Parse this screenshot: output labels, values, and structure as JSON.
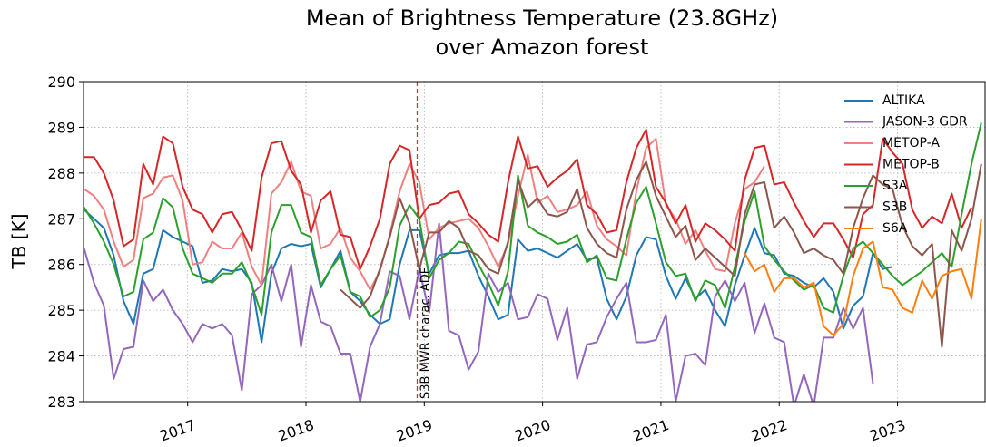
{
  "chart_data": {
    "type": "line",
    "title": "Mean of Brightness Temperature (23.8GHz)",
    "subtitle": "over Amazon forest",
    "ylabel": "TB [K]",
    "xlim": [
      2016.12,
      2023.74
    ],
    "xticks": [
      2017,
      2018,
      2019,
      2020,
      2021,
      2022,
      2023
    ],
    "ylim": [
      283,
      290
    ],
    "yticks": [
      283,
      284,
      285,
      286,
      287,
      288,
      289,
      290
    ],
    "grid": true,
    "legend": "upper right",
    "annotation": {
      "text": "S3B MWR charac. ADF",
      "x": 2018.94,
      "color": "#8c564b"
    },
    "x": [
      2016.125,
      2016.208,
      2016.292,
      2016.375,
      2016.458,
      2016.542,
      2016.625,
      2016.708,
      2016.792,
      2016.875,
      2016.958,
      2017.042,
      2017.125,
      2017.208,
      2017.292,
      2017.375,
      2017.458,
      2017.542,
      2017.625,
      2017.708,
      2017.792,
      2017.875,
      2017.958,
      2018.042,
      2018.125,
      2018.208,
      2018.292,
      2018.375,
      2018.458,
      2018.542,
      2018.625,
      2018.708,
      2018.792,
      2018.875,
      2018.958,
      2019.042,
      2019.125,
      2019.208,
      2019.292,
      2019.375,
      2019.458,
      2019.542,
      2019.625,
      2019.708,
      2019.792,
      2019.875,
      2019.958,
      2020.042,
      2020.125,
      2020.208,
      2020.292,
      2020.375,
      2020.458,
      2020.542,
      2020.625,
      2020.708,
      2020.792,
      2020.875,
      2020.958,
      2021.042,
      2021.125,
      2021.208,
      2021.292,
      2021.375,
      2021.458,
      2021.542,
      2021.625,
      2021.708,
      2021.792,
      2021.875,
      2021.958,
      2022.042,
      2022.125,
      2022.208,
      2022.292,
      2022.375,
      2022.458,
      2022.542,
      2022.625,
      2022.708,
      2022.792,
      2022.875,
      2022.958,
      2023.042,
      2023.125,
      2023.208,
      2023.292,
      2023.375,
      2023.458,
      2023.542,
      2023.625,
      2023.708
    ],
    "series": [
      {
        "name": "ALTIKA",
        "color": "#1f77b4",
        "values": [
          287.2,
          287.0,
          286.8,
          286.2,
          285.2,
          284.7,
          285.8,
          285.9,
          286.75,
          286.6,
          286.5,
          286.4,
          285.6,
          285.65,
          285.9,
          285.85,
          285.9,
          285.6,
          284.3,
          285.8,
          286.35,
          286.45,
          286.4,
          286.45,
          285.5,
          285.9,
          286.3,
          285.4,
          285.2,
          284.9,
          284.7,
          284.8,
          286.0,
          286.75,
          286.75,
          285.8,
          286.2,
          286.25,
          286.25,
          286.3,
          285.75,
          285.3,
          284.8,
          284.9,
          286.55,
          286.3,
          286.35,
          286.25,
          286.15,
          286.3,
          286.45,
          286.1,
          286.15,
          285.25,
          284.8,
          285.3,
          286.2,
          286.6,
          286.55,
          285.75,
          285.25,
          285.7,
          285.25,
          285.45,
          285.0,
          284.65,
          285.55,
          286.2,
          286.8,
          286.25,
          286.2,
          285.8,
          285.75,
          285.6,
          285.5,
          285.7,
          285.4,
          284.6,
          285.1,
          285.3,
          286.25,
          285.9,
          285.95,
          null,
          null,
          null,
          null,
          null,
          null,
          null,
          null,
          null
        ]
      },
      {
        "name": "JASON-3 GDR",
        "color": "#9467bd",
        "values": [
          286.35,
          285.6,
          285.1,
          283.5,
          284.15,
          284.2,
          285.65,
          285.2,
          285.45,
          285.0,
          284.7,
          284.3,
          284.7,
          284.6,
          284.7,
          284.45,
          283.25,
          285.35,
          285.55,
          286.0,
          285.2,
          286.0,
          284.2,
          285.55,
          284.75,
          284.65,
          284.05,
          284.05,
          283.0,
          284.2,
          284.7,
          285.85,
          285.75,
          284.8,
          285.9,
          284.95,
          286.9,
          284.55,
          284.45,
          283.7,
          284.1,
          285.8,
          285.4,
          285.6,
          284.8,
          284.85,
          285.35,
          285.25,
          284.35,
          285.05,
          283.5,
          284.25,
          284.3,
          284.85,
          285.25,
          285.6,
          284.3,
          284.3,
          284.35,
          284.9,
          283.0,
          284.0,
          284.05,
          283.8,
          285.3,
          285.65,
          285.2,
          285.6,
          284.5,
          285.15,
          284.4,
          284.3,
          282.9,
          283.6,
          282.9,
          284.4,
          284.4,
          285.05,
          284.6,
          285.05,
          283.4,
          null,
          null,
          null,
          null,
          null,
          null,
          null,
          null,
          null,
          null,
          null
        ]
      },
      {
        "name": "METOP-A",
        "color": "#f08080",
        "values": [
          287.65,
          287.5,
          287.2,
          286.5,
          285.95,
          286.1,
          287.45,
          287.55,
          287.9,
          287.95,
          287.4,
          286.0,
          286.05,
          286.5,
          286.35,
          286.35,
          286.7,
          285.95,
          285.55,
          287.55,
          287.8,
          288.25,
          287.6,
          287.5,
          286.35,
          286.45,
          286.8,
          286.15,
          285.85,
          285.45,
          285.85,
          286.65,
          287.6,
          288.2,
          287.8,
          286.55,
          286.8,
          286.9,
          286.95,
          287.0,
          286.8,
          286.4,
          285.95,
          286.45,
          287.5,
          288.4,
          287.35,
          287.5,
          287.15,
          287.2,
          287.3,
          287.6,
          286.85,
          286.55,
          286.4,
          286.2,
          287.6,
          288.55,
          288.75,
          287.3,
          287.0,
          286.45,
          286.75,
          286.3,
          285.9,
          285.85,
          286.9,
          287.65,
          287.8,
          288.15,
          null,
          null,
          null,
          null,
          null,
          null,
          null,
          null,
          null,
          null,
          null,
          null,
          null,
          null,
          null,
          null,
          null,
          null,
          null,
          null,
          null,
          null
        ]
      },
      {
        "name": "METOP-B",
        "color": "#d62728",
        "values": [
          288.35,
          288.35,
          288.0,
          287.4,
          286.4,
          286.55,
          288.2,
          287.75,
          288.8,
          288.65,
          287.7,
          287.2,
          287.1,
          286.7,
          287.1,
          287.15,
          286.75,
          286.3,
          287.9,
          288.65,
          288.7,
          288.05,
          287.75,
          286.7,
          287.4,
          287.6,
          286.65,
          286.6,
          285.9,
          286.4,
          287.0,
          288.2,
          288.6,
          288.5,
          287.0,
          287.3,
          287.35,
          287.55,
          287.6,
          287.1,
          286.9,
          286.65,
          286.5,
          287.8,
          288.8,
          288.1,
          288.15,
          287.7,
          287.9,
          288.05,
          288.3,
          287.3,
          287.1,
          286.7,
          286.75,
          287.8,
          288.55,
          288.95,
          287.7,
          287.35,
          286.9,
          287.3,
          286.5,
          286.9,
          286.75,
          286.55,
          286.3,
          287.85,
          288.55,
          288.6,
          287.75,
          287.8,
          287.35,
          286.95,
          286.6,
          286.9,
          286.9,
          286.55,
          286.15,
          287.1,
          287.3,
          288.75,
          288.45,
          288.2,
          287.2,
          286.8,
          287.05,
          286.9,
          287.55,
          286.8,
          287.25,
          null
        ]
      },
      {
        "name": "S3A",
        "color": "#2ca02c",
        "values": [
          287.25,
          286.9,
          286.5,
          286.0,
          285.3,
          285.4,
          286.55,
          286.7,
          287.45,
          287.25,
          286.35,
          285.8,
          285.7,
          285.6,
          285.8,
          285.8,
          286.05,
          285.55,
          284.9,
          286.7,
          287.3,
          287.3,
          286.7,
          286.6,
          285.55,
          285.9,
          286.2,
          285.4,
          285.3,
          284.85,
          285.0,
          285.5,
          286.85,
          287.3,
          287.0,
          285.7,
          286.1,
          286.25,
          286.5,
          286.45,
          286.0,
          285.6,
          285.1,
          285.85,
          287.95,
          286.85,
          286.7,
          286.6,
          286.45,
          286.5,
          286.65,
          286.05,
          286.2,
          285.7,
          285.65,
          286.55,
          287.35,
          287.7,
          286.9,
          286.05,
          285.75,
          285.8,
          285.2,
          285.65,
          285.55,
          285.05,
          285.95,
          286.95,
          287.6,
          286.4,
          286.1,
          285.85,
          285.65,
          285.45,
          285.55,
          285.05,
          284.95,
          285.75,
          286.35,
          286.5,
          286.25,
          286.0,
          285.75,
          285.55,
          285.7,
          285.85,
          286.05,
          286.25,
          285.95,
          287.1,
          288.2,
          289.1
        ]
      },
      {
        "name": "S3B",
        "color": "#8c564b",
        "values": [
          null,
          null,
          null,
          null,
          null,
          null,
          null,
          null,
          null,
          null,
          null,
          null,
          null,
          null,
          null,
          null,
          null,
          null,
          null,
          null,
          null,
          null,
          null,
          null,
          null,
          null,
          285.45,
          285.25,
          285.05,
          285.3,
          285.9,
          286.6,
          287.45,
          286.9,
          285.9,
          286.7,
          286.7,
          286.95,
          286.8,
          286.3,
          286.2,
          285.9,
          285.8,
          286.5,
          287.85,
          287.25,
          287.45,
          287.1,
          287.05,
          287.15,
          287.65,
          286.8,
          286.45,
          286.25,
          286.15,
          287.2,
          287.85,
          288.25,
          287.5,
          287.05,
          286.6,
          286.85,
          286.1,
          286.35,
          286.15,
          285.95,
          285.75,
          287.1,
          287.75,
          287.8,
          286.8,
          287.05,
          286.7,
          286.25,
          286.35,
          286.2,
          286.1,
          285.8,
          286.8,
          287.45,
          287.95,
          287.75,
          287.65,
          286.85,
          286.4,
          286.2,
          286.45,
          284.2,
          286.75,
          286.3,
          287.0,
          288.2
        ]
      },
      {
        "name": "S6A",
        "color": "#ff7f0e",
        "values": [
          null,
          null,
          null,
          null,
          null,
          null,
          null,
          null,
          null,
          null,
          null,
          null,
          null,
          null,
          null,
          null,
          null,
          null,
          null,
          null,
          null,
          null,
          null,
          null,
          null,
          null,
          null,
          null,
          null,
          null,
          null,
          null,
          null,
          null,
          null,
          null,
          null,
          null,
          null,
          null,
          null,
          null,
          null,
          null,
          null,
          null,
          null,
          null,
          null,
          null,
          null,
          null,
          null,
          null,
          null,
          null,
          null,
          null,
          null,
          null,
          null,
          null,
          null,
          null,
          null,
          null,
          null,
          286.25,
          285.85,
          286.0,
          285.4,
          285.7,
          285.7,
          285.5,
          285.6,
          284.65,
          284.45,
          284.7,
          285.75,
          286.35,
          286.5,
          285.5,
          285.45,
          285.05,
          284.95,
          285.65,
          285.25,
          285.75,
          285.85,
          285.9,
          285.25,
          287.0
        ]
      }
    ]
  }
}
